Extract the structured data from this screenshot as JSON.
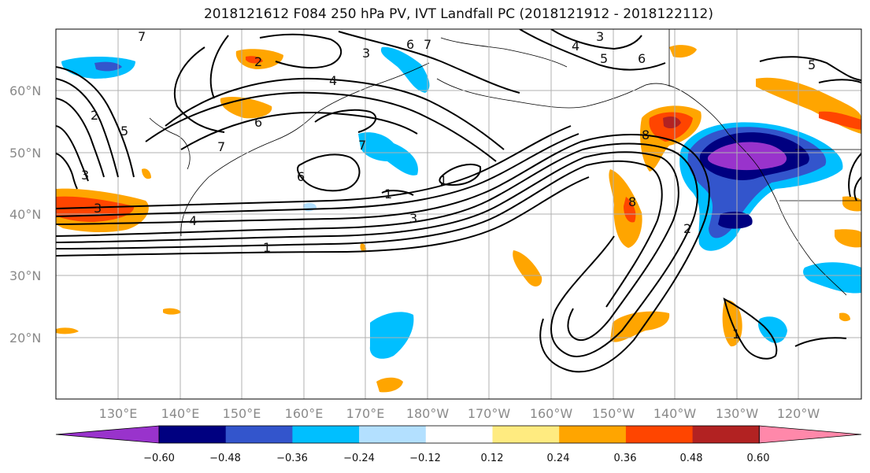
{
  "title": "2018121612 F084 250 hPa PV, IVT Landfall PC (2018121912 - 2018122112)",
  "lat_ticks": [
    "60°N",
    "50°N",
    "40°N",
    "30°N",
    "20°N"
  ],
  "lon_ticks": [
    "130°E",
    "140°E",
    "150°E",
    "160°E",
    "170°E",
    "180°W",
    "170°W",
    "160°W",
    "150°W",
    "140°W",
    "130°W",
    "120°W"
  ],
  "colorbar": {
    "labels": [
      "−0.60",
      "−0.48",
      "−0.36",
      "−0.24",
      "−0.12",
      "0.12",
      "0.24",
      "0.36",
      "0.48",
      "0.60"
    ],
    "colors": [
      "#9933cc",
      "#000080",
      "#3355cc",
      "#00bfff",
      "#b3e0ff",
      "#ffffff",
      "#ffeb80",
      "#ffa500",
      "#ff4500",
      "#b22222",
      "#ff88aa"
    ]
  },
  "contour_labels": [
    "1",
    "1",
    "1",
    "1",
    "2",
    "2",
    "3",
    "3",
    "3",
    "4",
    "4",
    "4",
    "5",
    "5",
    "6",
    "6",
    "6",
    "7",
    "7",
    "7",
    "8",
    "8",
    "3",
    "5",
    "6",
    "7",
    "2",
    "3"
  ]
}
